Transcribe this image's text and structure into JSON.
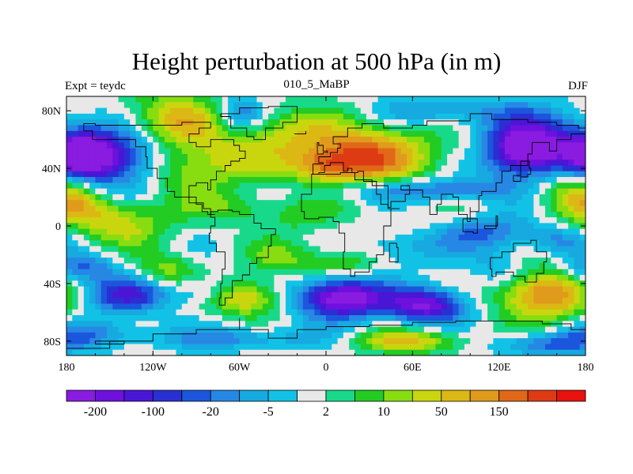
{
  "chart_data": {
    "type": "heatmap",
    "title": "Height perturbation at 500 hPa (in m)",
    "left_string": "Expt = teydc",
    "center_string": "010_5_MaBP",
    "right_string": "DJF",
    "x_axis": {
      "range": [
        -180,
        180
      ],
      "ticks": [
        {
          "value": -180,
          "label": "180"
        },
        {
          "value": -120,
          "label": "120W"
        },
        {
          "value": -60,
          "label": "60W"
        },
        {
          "value": 0,
          "label": "0"
        },
        {
          "value": 60,
          "label": "60E"
        },
        {
          "value": 120,
          "label": "120E"
        },
        {
          "value": 180,
          "label": "180"
        }
      ]
    },
    "y_axis": {
      "range": [
        -90,
        90
      ],
      "ticks": [
        {
          "value": 80,
          "label": "80N"
        },
        {
          "value": 40,
          "label": "40N"
        },
        {
          "value": 0,
          "label": "0"
        },
        {
          "value": -40,
          "label": "40S"
        },
        {
          "value": -80,
          "label": "80S"
        }
      ]
    },
    "colorbar": {
      "colors": [
        "#8a1be0",
        "#6e11de",
        "#4a16d6",
        "#2a2fd3",
        "#1b56dc",
        "#2688e4",
        "#16aae0",
        "#12c2e6",
        "#e8e8e8",
        "#18d98a",
        "#22cc22",
        "#88dd11",
        "#c9d60e",
        "#dcb814",
        "#e09a1c",
        "#e06818",
        "#dd3b14",
        "#e8120e"
      ],
      "labels": [
        {
          "boundary": 1,
          "text": "-200"
        },
        {
          "boundary": 3,
          "text": "-100"
        },
        {
          "boundary": 5,
          "text": "-20"
        },
        {
          "boundary": 7,
          "text": "-5"
        },
        {
          "boundary": 9,
          "text": "2"
        },
        {
          "boundary": 11,
          "text": "10"
        },
        {
          "boundary": 13,
          "text": "50"
        },
        {
          "boundary": 15,
          "text": "150"
        }
      ]
    },
    "field_blobs": [
      {
        "lon": -150,
        "lat": 50,
        "rlon": 40,
        "rlat": 24,
        "a": -10
      },
      {
        "lon": -168,
        "lat": 48,
        "rlon": 18,
        "rlat": 14,
        "a": -6
      },
      {
        "lon": -110,
        "lat": 72,
        "rlon": 40,
        "rlat": 20,
        "a": 7
      },
      {
        "lon": -100,
        "lat": 35,
        "rlon": 35,
        "rlat": 18,
        "a": 3
      },
      {
        "lon": -90,
        "lat": 45,
        "rlon": 30,
        "rlat": 20,
        "a": 3
      },
      {
        "lon": -60,
        "lat": 78,
        "rlon": 16,
        "rlat": 12,
        "a": -5
      },
      {
        "lon": -60,
        "lat": 50,
        "rlon": 25,
        "rlat": 18,
        "a": 2
      },
      {
        "lon": -30,
        "lat": 68,
        "rlon": 30,
        "rlat": 16,
        "a": 3
      },
      {
        "lon": 20,
        "lat": 48,
        "rlon": 50,
        "rlat": 22,
        "a": 10
      },
      {
        "lon": 0,
        "lat": 42,
        "rlon": 22,
        "rlat": 10,
        "a": 3
      },
      {
        "lon": 40,
        "lat": 25,
        "rlon": 55,
        "rlat": 8,
        "a": -4
      },
      {
        "lon": 90,
        "lat": 25,
        "rlon": 40,
        "rlat": 8,
        "a": -3
      },
      {
        "lon": 140,
        "lat": 55,
        "rlon": 35,
        "rlat": 22,
        "a": -11
      },
      {
        "lon": 135,
        "lat": 52,
        "rlon": 18,
        "rlat": 12,
        "a": -3
      },
      {
        "lon": 80,
        "lat": 80,
        "rlon": 40,
        "rlat": 10,
        "a": -4
      },
      {
        "lon": 100,
        "lat": 55,
        "rlon": 25,
        "rlat": 15,
        "a": 2
      },
      {
        "lon": 170,
        "lat": 25,
        "rlon": 25,
        "rlat": 15,
        "a": 5
      },
      {
        "lon": -170,
        "lat": 20,
        "rlon": 20,
        "rlat": 15,
        "a": 3
      },
      {
        "lon": -150,
        "lat": 8,
        "rlon": 40,
        "rlat": 12,
        "a": 5
      },
      {
        "lon": -140,
        "lat": -5,
        "rlon": 30,
        "rlat": 10,
        "a": 3
      },
      {
        "lon": -60,
        "lat": 12,
        "rlon": 30,
        "rlat": 10,
        "a": 3
      },
      {
        "lon": -20,
        "lat": 5,
        "rlon": 25,
        "rlat": 12,
        "a": 2
      },
      {
        "lon": 60,
        "lat": 0,
        "rlon": 40,
        "rlat": 12,
        "a": 1
      },
      {
        "lon": 110,
        "lat": -5,
        "rlon": 35,
        "rlat": 12,
        "a": -5
      },
      {
        "lon": 160,
        "lat": -10,
        "rlon": 20,
        "rlat": 10,
        "a": -3
      },
      {
        "lon": -170,
        "lat": -30,
        "rlon": 25,
        "rlat": 10,
        "a": -5
      },
      {
        "lon": -110,
        "lat": -30,
        "rlon": 22,
        "rlat": 12,
        "a": 4
      },
      {
        "lon": -30,
        "lat": -22,
        "rlon": 25,
        "rlat": 12,
        "a": 3
      },
      {
        "lon": 10,
        "lat": -25,
        "rlon": 25,
        "rlat": 10,
        "a": 4
      },
      {
        "lon": 50,
        "lat": -15,
        "rlon": 30,
        "rlat": 12,
        "a": -3
      },
      {
        "lon": -140,
        "lat": -48,
        "rlon": 30,
        "rlat": 12,
        "a": -7
      },
      {
        "lon": -85,
        "lat": -45,
        "rlon": 20,
        "rlat": 10,
        "a": -3
      },
      {
        "lon": -55,
        "lat": -50,
        "rlon": 25,
        "rlat": 12,
        "a": 7
      },
      {
        "lon": 10,
        "lat": -50,
        "rlon": 30,
        "rlat": 14,
        "a": -12
      },
      {
        "lon": 70,
        "lat": -55,
        "rlon": 28,
        "rlat": 12,
        "a": -10
      },
      {
        "lon": 150,
        "lat": -48,
        "rlon": 32,
        "rlat": 18,
        "a": 9
      },
      {
        "lon": 120,
        "lat": -30,
        "rlon": 20,
        "rlat": 12,
        "a": -3
      },
      {
        "lon": -160,
        "lat": -75,
        "rlon": 35,
        "rlat": 10,
        "a": -4
      },
      {
        "lon": -60,
        "lat": -78,
        "rlon": 50,
        "rlat": 8,
        "a": -4
      },
      {
        "lon": 60,
        "lat": -80,
        "rlon": 40,
        "rlat": 8,
        "a": 6
      },
      {
        "lon": 150,
        "lat": -82,
        "rlon": 35,
        "rlat": 8,
        "a": -5
      }
    ],
    "coastlines": [
      [
        [
          -168,
          66
        ],
        [
          -162,
          60
        ],
        [
          -150,
          60
        ],
        [
          -140,
          60
        ],
        [
          -132,
          55
        ],
        [
          -125,
          48
        ],
        [
          -124,
          40
        ],
        [
          -117,
          33
        ],
        [
          -110,
          24
        ],
        [
          -105,
          20
        ],
        [
          -95,
          16
        ],
        [
          -85,
          12
        ],
        [
          -80,
          8
        ],
        [
          -77,
          8
        ],
        [
          -82,
          10
        ],
        [
          -86,
          15
        ],
        [
          -90,
          20
        ],
        [
          -95,
          28
        ],
        [
          -90,
          30
        ],
        [
          -82,
          25
        ],
        [
          -80,
          32
        ],
        [
          -76,
          38
        ],
        [
          -70,
          42
        ],
        [
          -66,
          45
        ],
        [
          -60,
          47
        ],
        [
          -56,
          52
        ],
        [
          -60,
          56
        ],
        [
          -64,
          60
        ],
        [
          -78,
          60
        ],
        [
          -80,
          55
        ],
        [
          -90,
          58
        ],
        [
          -95,
          64
        ],
        [
          -88,
          68
        ],
        [
          -80,
          72
        ],
        [
          -100,
          70
        ],
        [
          -120,
          70
        ],
        [
          -130,
          70
        ],
        [
          -145,
          70
        ],
        [
          -160,
          71
        ],
        [
          -168,
          66
        ]
      ],
      [
        [
          -73,
          78
        ],
        [
          -60,
          82
        ],
        [
          -40,
          83
        ],
        [
          -20,
          82
        ],
        [
          -20,
          72
        ],
        [
          -30,
          68
        ],
        [
          -42,
          60
        ],
        [
          -50,
          62
        ],
        [
          -55,
          68
        ],
        [
          -66,
          76
        ],
        [
          -73,
          78
        ]
      ],
      [
        [
          -80,
          10
        ],
        [
          -75,
          11
        ],
        [
          -65,
          10
        ],
        [
          -60,
          8
        ],
        [
          -50,
          2
        ],
        [
          -45,
          -2
        ],
        [
          -35,
          -6
        ],
        [
          -38,
          -14
        ],
        [
          -40,
          -22
        ],
        [
          -48,
          -26
        ],
        [
          -53,
          -34
        ],
        [
          -58,
          -38
        ],
        [
          -65,
          -42
        ],
        [
          -65,
          -50
        ],
        [
          -70,
          -55
        ],
        [
          -74,
          -50
        ],
        [
          -73,
          -40
        ],
        [
          -72,
          -30
        ],
        [
          -70,
          -18
        ],
        [
          -76,
          -12
        ],
        [
          -81,
          -5
        ],
        [
          -80,
          0
        ],
        [
          -77,
          6
        ],
        [
          -80,
          10
        ]
      ],
      [
        [
          -10,
          36
        ],
        [
          -6,
          36
        ],
        [
          10,
          37
        ],
        [
          20,
          32
        ],
        [
          32,
          31
        ],
        [
          35,
          28
        ],
        [
          43,
          12
        ],
        [
          51,
          12
        ],
        [
          45,
          0
        ],
        [
          40,
          -10
        ],
        [
          40,
          -20
        ],
        [
          35,
          -25
        ],
        [
          30,
          -32
        ],
        [
          20,
          -35
        ],
        [
          17,
          -30
        ],
        [
          12,
          -18
        ],
        [
          13,
          -5
        ],
        [
          9,
          3
        ],
        [
          5,
          6
        ],
        [
          -5,
          5
        ],
        [
          -15,
          10
        ],
        [
          -17,
          15
        ],
        [
          -17,
          22
        ],
        [
          -10,
          30
        ],
        [
          -10,
          36
        ]
      ],
      [
        [
          -10,
          36
        ],
        [
          -9,
          43
        ],
        [
          -2,
          44
        ],
        [
          -5,
          48
        ],
        [
          3,
          51
        ],
        [
          8,
          54
        ],
        [
          10,
          57
        ],
        [
          5,
          62
        ],
        [
          15,
          68
        ],
        [
          25,
          71
        ],
        [
          40,
          68
        ],
        [
          60,
          70
        ],
        [
          70,
          73
        ],
        [
          80,
          73
        ],
        [
          100,
          78
        ],
        [
          115,
          74
        ],
        [
          140,
          72
        ],
        [
          160,
          70
        ],
        [
          175,
          68
        ],
        [
          180,
          66
        ],
        [
          180,
          64
        ],
        [
          170,
          60
        ],
        [
          160,
          52
        ],
        [
          155,
          58
        ],
        [
          143,
          50
        ],
        [
          140,
          42
        ],
        [
          128,
          38
        ],
        [
          122,
          30
        ],
        [
          118,
          24
        ],
        [
          108,
          21
        ],
        [
          106,
          10
        ],
        [
          100,
          13
        ],
        [
          100,
          3
        ],
        [
          98,
          8
        ],
        [
          92,
          20
        ],
        [
          88,
          22
        ],
        [
          80,
          15
        ],
        [
          77,
          8
        ],
        [
          72,
          20
        ],
        [
          67,
          25
        ],
        [
          57,
          25
        ],
        [
          52,
          28
        ],
        [
          58,
          22
        ],
        [
          55,
          17
        ],
        [
          45,
          13
        ],
        [
          43,
          15
        ],
        [
          38,
          22
        ],
        [
          35,
          28
        ],
        [
          32,
          31
        ],
        [
          26,
          38
        ],
        [
          22,
          37
        ],
        [
          18,
          40
        ],
        [
          15,
          38
        ],
        [
          12,
          44
        ],
        [
          8,
          44
        ],
        [
          3,
          42
        ],
        [
          -1,
          37
        ],
        [
          -5,
          36
        ],
        [
          -10,
          36
        ]
      ],
      [
        [
          114,
          -22
        ],
        [
          122,
          -18
        ],
        [
          130,
          -12
        ],
        [
          136,
          -12
        ],
        [
          142,
          -10
        ],
        [
          146,
          -18
        ],
        [
          153,
          -25
        ],
        [
          151,
          -33
        ],
        [
          146,
          -39
        ],
        [
          138,
          -35
        ],
        [
          130,
          -32
        ],
        [
          118,
          -35
        ],
        [
          115,
          -30
        ],
        [
          114,
          -22
        ]
      ],
      [
        [
          -180,
          -85
        ],
        [
          -150,
          -80
        ],
        [
          -120,
          -75
        ],
        [
          -90,
          -72
        ],
        [
          -60,
          -64
        ],
        [
          -60,
          -72
        ],
        [
          -40,
          -78
        ],
        [
          -20,
          -72
        ],
        [
          0,
          -70
        ],
        [
          30,
          -69
        ],
        [
          60,
          -67
        ],
        [
          90,
          -66
        ],
        [
          120,
          -66
        ],
        [
          150,
          -68
        ],
        [
          170,
          -72
        ],
        [
          180,
          -78
        ]
      ],
      [
        [
          -6,
          50
        ],
        [
          -2,
          51
        ],
        [
          1,
          52
        ],
        [
          -2,
          56
        ],
        [
          -5,
          58
        ],
        [
          -6,
          53
        ],
        [
          -6,
          50
        ]
      ],
      [
        [
          130,
          31
        ],
        [
          135,
          34
        ],
        [
          140,
          36
        ],
        [
          142,
          40
        ],
        [
          141,
          45
        ],
        [
          135,
          35
        ],
        [
          130,
          31
        ]
      ],
      [
        [
          -22,
          64
        ],
        [
          -14,
          66
        ],
        [
          -14,
          64
        ],
        [
          -22,
          64
        ]
      ],
      [
        [
          44,
          -25
        ],
        [
          50,
          -15
        ],
        [
          49,
          -12
        ],
        [
          44,
          -20
        ],
        [
          44,
          -25
        ]
      ],
      [
        [
          95,
          5
        ],
        [
          105,
          -5
        ],
        [
          102,
          -4
        ],
        [
          95,
          5
        ]
      ],
      [
        [
          110,
          -2
        ],
        [
          118,
          7
        ],
        [
          119,
          0
        ],
        [
          110,
          -2
        ]
      ],
      [
        [
          -160,
          -82
        ],
        [
          -140,
          -80
        ],
        [
          -160,
          -82
        ]
      ]
    ]
  }
}
